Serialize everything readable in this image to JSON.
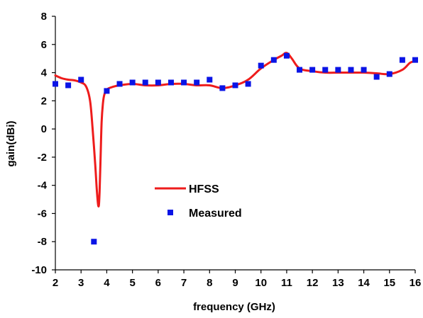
{
  "chart_data": {
    "type": "line",
    "title": "",
    "xlabel": "frequency (GHz)",
    "ylabel": "gain(dBi)",
    "xlim": [
      2,
      16
    ],
    "ylim": [
      -10,
      8
    ],
    "x_ticks": [
      2,
      3,
      4,
      5,
      6,
      7,
      8,
      9,
      10,
      11,
      12,
      13,
      14,
      15,
      16
    ],
    "y_ticks": [
      -10,
      -8,
      -6,
      -4,
      -2,
      0,
      2,
      4,
      6,
      8
    ],
    "x_tick_labels": [
      "2",
      "3",
      "4",
      "5",
      "6",
      "7",
      "8",
      "9",
      "10",
      "11",
      "12",
      "13",
      "14",
      "15",
      "16"
    ],
    "y_tick_labels": [
      "-10",
      "-8",
      "-6",
      "-4",
      "-2",
      "0",
      "2",
      "4",
      "6",
      "8"
    ],
    "grid": false,
    "legend_position": "lower-center",
    "series": [
      {
        "name": "HFSS",
        "style": "line",
        "color": "#ee1c1c",
        "x": [
          2,
          2.25,
          2.5,
          2.75,
          3,
          3.2,
          3.35,
          3.45,
          3.55,
          3.62,
          3.68,
          3.72,
          3.76,
          3.8,
          3.85,
          3.9,
          4,
          4.25,
          4.5,
          5,
          5.5,
          6,
          6.5,
          7,
          7.5,
          8,
          8.5,
          9,
          9.5,
          10,
          10.5,
          10.8,
          11,
          11.2,
          11.5,
          12,
          12.5,
          13,
          13.5,
          14,
          14.5,
          15,
          15.5,
          15.8,
          16
        ],
        "y": [
          3.8,
          3.6,
          3.5,
          3.45,
          3.3,
          3.0,
          2.0,
          0.0,
          -2.5,
          -4.5,
          -5.5,
          -4.5,
          -2.0,
          0.5,
          1.8,
          2.4,
          2.8,
          3.0,
          3.1,
          3.2,
          3.1,
          3.1,
          3.2,
          3.2,
          3.1,
          3.1,
          2.9,
          3.1,
          3.5,
          4.3,
          4.9,
          5.2,
          5.4,
          5.0,
          4.3,
          4.1,
          4.0,
          4.0,
          4.0,
          4.0,
          3.95,
          3.9,
          4.2,
          4.7,
          4.8
        ]
      },
      {
        "name": "Measured",
        "style": "markers",
        "color": "#0a14e6",
        "x": [
          2,
          2.5,
          3,
          3.5,
          4,
          4.5,
          5,
          5.5,
          6,
          6.5,
          7,
          7.5,
          8,
          8.5,
          9,
          9.5,
          10,
          10.5,
          11,
          11.5,
          12,
          12.5,
          13,
          13.5,
          14,
          14.5,
          15,
          15.5,
          16
        ],
        "y": [
          3.2,
          3.1,
          3.5,
          -8.0,
          2.7,
          3.2,
          3.3,
          3.3,
          3.3,
          3.3,
          3.3,
          3.3,
          3.5,
          2.9,
          3.1,
          3.2,
          4.5,
          4.9,
          5.2,
          4.2,
          4.2,
          4.2,
          4.2,
          4.2,
          4.2,
          3.7,
          3.9,
          4.9,
          4.9
        ]
      }
    ]
  }
}
